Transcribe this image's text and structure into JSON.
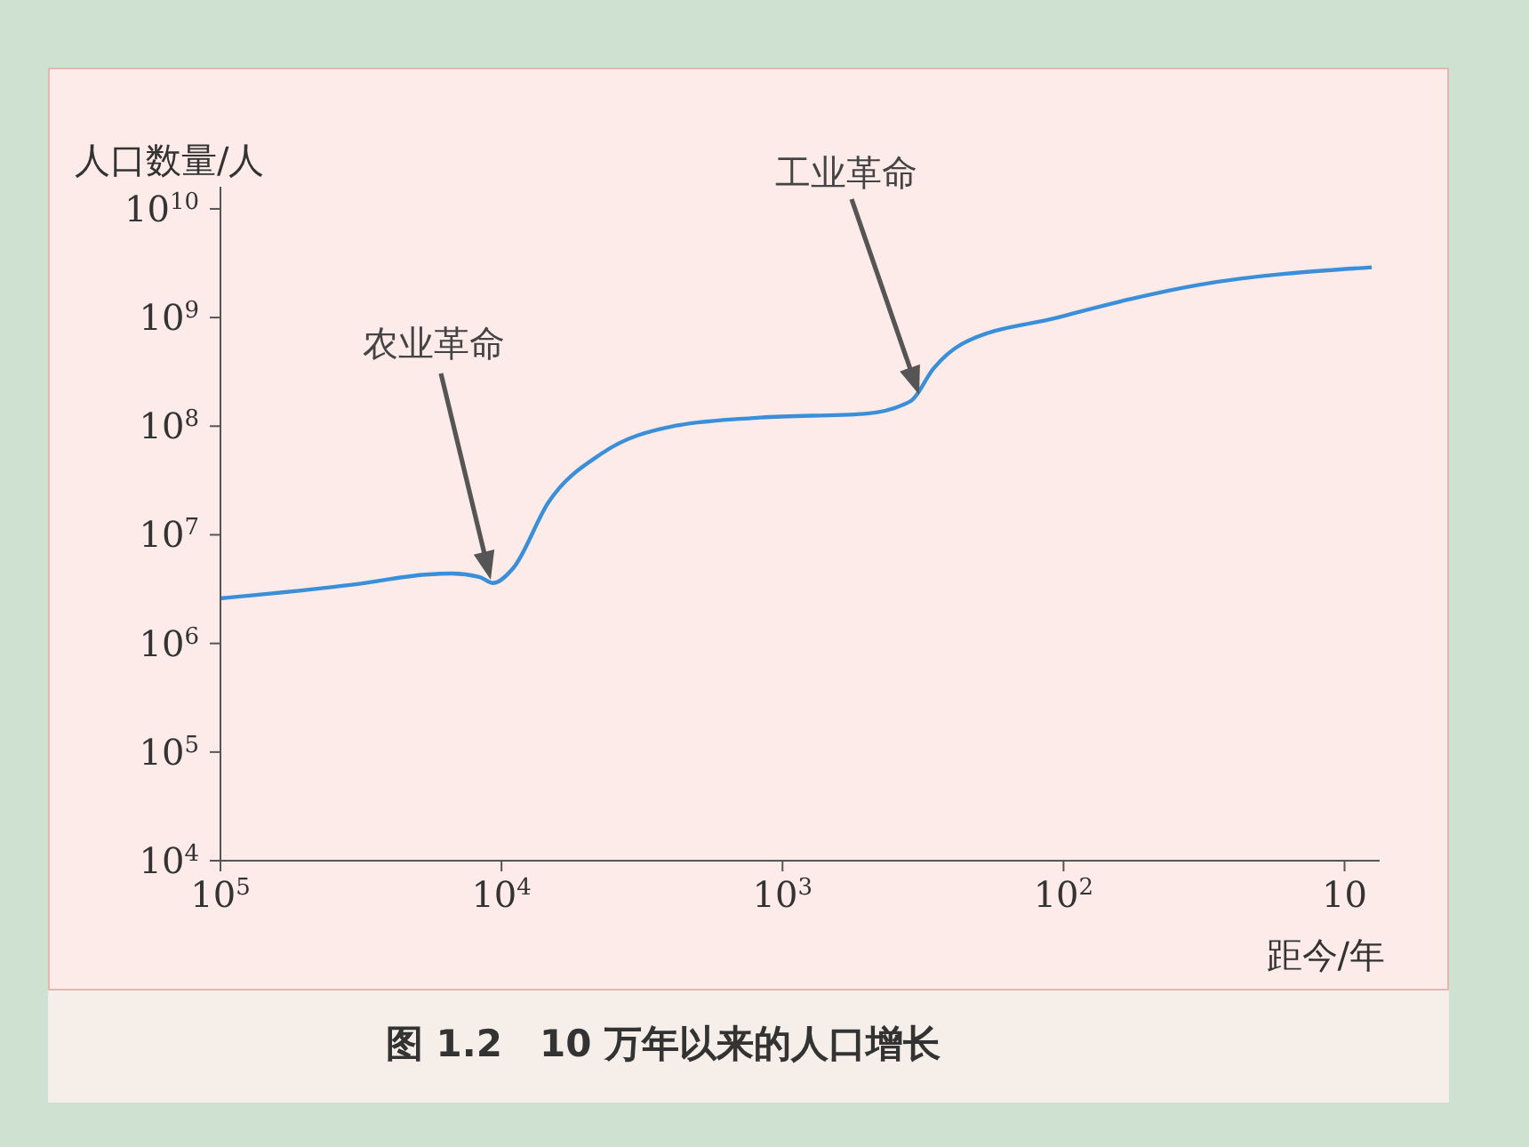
{
  "chart_data": {
    "type": "line",
    "title": "图 1.2　10 万年以来的人口增长",
    "xlabel": "距今/年",
    "ylabel": "人口数量/人",
    "x": [
      100000,
      33000,
      18600,
      15000,
      12000,
      10700,
      9100,
      6800,
      4400,
      2450,
      1200,
      510,
      350,
      290,
      230,
      105,
      33,
      8
    ],
    "series": [
      {
        "color": "#3a8fd8",
        "values": [
          2600000,
          3500000,
          4300000,
          4400000,
          4100000,
          3600000,
          4900000,
          20000000,
          56000000,
          100000000,
          120000000,
          130000000,
          170000000,
          340000000,
          570000000,
          1000000000,
          2000000000,
          2900000000
        ]
      }
    ],
    "log": "xy",
    "xlim": [
      100000,
      7.5
    ],
    "ylim": [
      10000,
      16000000000
    ],
    "xticks": [
      {
        "value": 100000,
        "label": "10$^{5}$"
      },
      {
        "value": 10000,
        "label": "10$^{4}$"
      },
      {
        "value": 1000,
        "label": "10$^{3}$"
      },
      {
        "value": 100,
        "label": "10$^{2}$"
      },
      10
    ],
    "yticks": [
      {
        "value": 10000,
        "label": "10$^{4}$"
      },
      {
        "value": 100000,
        "label": "10$^{5}$"
      },
      {
        "value": 1000000,
        "label": "10$^{6}$"
      },
      {
        "value": 10000000,
        "label": "10$^{7}$"
      },
      {
        "value": 100000000,
        "label": "10$^{8}$"
      },
      {
        "value": 1000000000,
        "label": "10$^{9}$"
      },
      {
        "value": 10000000000,
        "label": "10$^{10}$"
      }
    ],
    "annotations": [
      "农业革命",
      "工业革命"
    ],
    "grid": false,
    "legend": false,
    "marker": "none",
    "line_style": "solid"
  }
}
